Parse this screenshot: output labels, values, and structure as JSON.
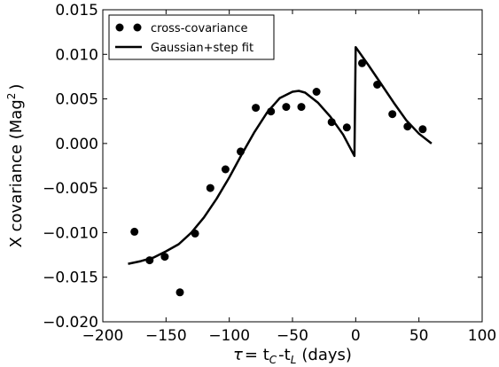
{
  "chart_data": {
    "type": "scatter",
    "title": "",
    "xlabel": {
      "tau": "τ",
      "eq": "= t",
      "sub1": "C",
      "mid": "-t",
      "sub2": "L",
      "unit": "(days)"
    },
    "ylabel": {
      "main": "X covariance (Mag",
      "sup": "2",
      "close": ")"
    },
    "xlim": [
      -200,
      100
    ],
    "ylim": [
      -0.02,
      0.015
    ],
    "xticks": [
      -200,
      -150,
      -100,
      -50,
      0,
      50,
      100
    ],
    "xtick_labels": [
      "−200",
      "−150",
      "−100",
      "−50",
      "0",
      "50",
      "100"
    ],
    "yticks": [
      -0.02,
      -0.015,
      -0.01,
      -0.005,
      0.0,
      0.005,
      0.01,
      0.015
    ],
    "ytick_labels": [
      "−0.020",
      "−0.015",
      "−0.010",
      "−0.005",
      "0.000",
      "0.005",
      "0.010",
      "0.015"
    ],
    "grid": false,
    "legend_position": "top-left",
    "series": [
      {
        "name": "cross-covariance",
        "kind": "scatter",
        "color": "#000000",
        "x": [
          -175,
          -163,
          -151,
          -139,
          -127,
          -115,
          -103,
          -91,
          -79,
          -67,
          -55,
          -43,
          -31,
          -19,
          -7,
          5,
          17,
          29,
          41,
          53
        ],
        "y": [
          -0.0099,
          -0.0131,
          -0.0127,
          -0.0167,
          -0.0101,
          -0.005,
          -0.0029,
          -0.0009,
          0.004,
          0.0036,
          0.0041,
          0.0041,
          0.0058,
          0.0024,
          0.0018,
          0.009,
          0.0066,
          0.0033,
          0.0019,
          0.0016
        ]
      },
      {
        "name": "Gaussian+step fit",
        "kind": "line",
        "color": "#000000",
        "x": [
          -180,
          -170,
          -160,
          -150,
          -140,
          -130,
          -120,
          -110,
          -100,
          -90,
          -80,
          -70,
          -60,
          -50,
          -45,
          -40,
          -30,
          -20,
          -10,
          -1,
          0,
          10,
          20,
          30,
          40,
          50,
          60
        ],
        "y": [
          -0.0135,
          -0.0132,
          -0.0128,
          -0.0121,
          -0.0113,
          -0.01,
          -0.0083,
          -0.0062,
          -0.0038,
          -0.0012,
          0.0013,
          0.0035,
          0.0051,
          0.0058,
          0.0059,
          0.0057,
          0.0046,
          0.003,
          0.001,
          -0.0014,
          0.0108,
          0.0088,
          0.0067,
          0.0046,
          0.0026,
          0.0011,
          0.0
        ]
      }
    ]
  }
}
